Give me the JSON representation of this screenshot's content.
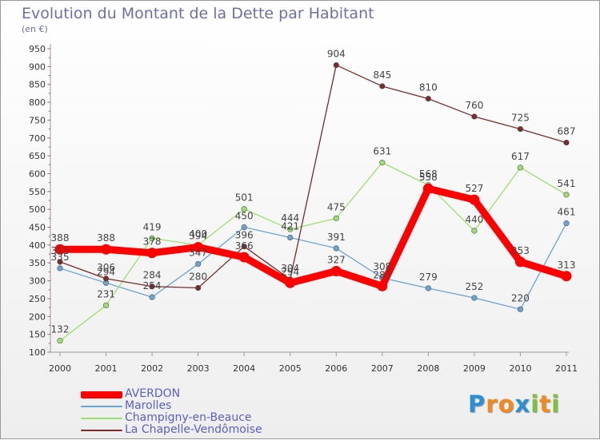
{
  "chart_data": {
    "type": "line",
    "title": "Evolution du Montant de la Dette par Habitant",
    "subtitle": "(en €)",
    "xlabel": "",
    "ylabel": "",
    "x": [
      "2000",
      "2001",
      "2002",
      "2003",
      "2004",
      "2005",
      "2006",
      "2007",
      "2008",
      "2009",
      "2010",
      "2011"
    ],
    "ylim": [
      100,
      950
    ],
    "yticks": [
      100,
      150,
      200,
      250,
      300,
      350,
      400,
      450,
      500,
      550,
      600,
      650,
      700,
      750,
      800,
      850,
      900,
      950
    ],
    "grid": false,
    "legend_position": "bottom-left",
    "series": [
      {
        "name": "AVERDON",
        "color": "#ff0000",
        "values": [
          388,
          388,
          378,
          394,
          366,
          294,
          327,
          285,
          558,
          527,
          353,
          313
        ]
      },
      {
        "name": "Marolles",
        "color": "#6aa4d4",
        "values": [
          335,
          294,
          254,
          347,
          450,
          421,
          391,
          308,
          279,
          252,
          220,
          461
        ]
      },
      {
        "name": "Champigny-en-Beauce",
        "color": "#9ddf6e",
        "values": [
          132,
          231,
          419,
          400,
          501,
          444,
          475,
          631,
          568,
          440,
          617,
          541
        ]
      },
      {
        "name": "La Chapelle-Vendômoise",
        "color": "#7a2c2c",
        "values": [
          353,
          306,
          284,
          280,
          396,
          304,
          904,
          845,
          810,
          760,
          725,
          687
        ]
      }
    ]
  },
  "logo": {
    "letters": [
      {
        "char": "P",
        "color": "#2a8fd6"
      },
      {
        "char": "r",
        "color": "#f08a1c"
      },
      {
        "char": "o",
        "color": "#f08a1c"
      },
      {
        "char": "x",
        "color": "#2a8fd6"
      },
      {
        "char": "i",
        "color": "#7cc23c"
      },
      {
        "char": "t",
        "color": "#f08a1c"
      },
      {
        "char": "i",
        "color": "#7cc23c"
      }
    ]
  }
}
